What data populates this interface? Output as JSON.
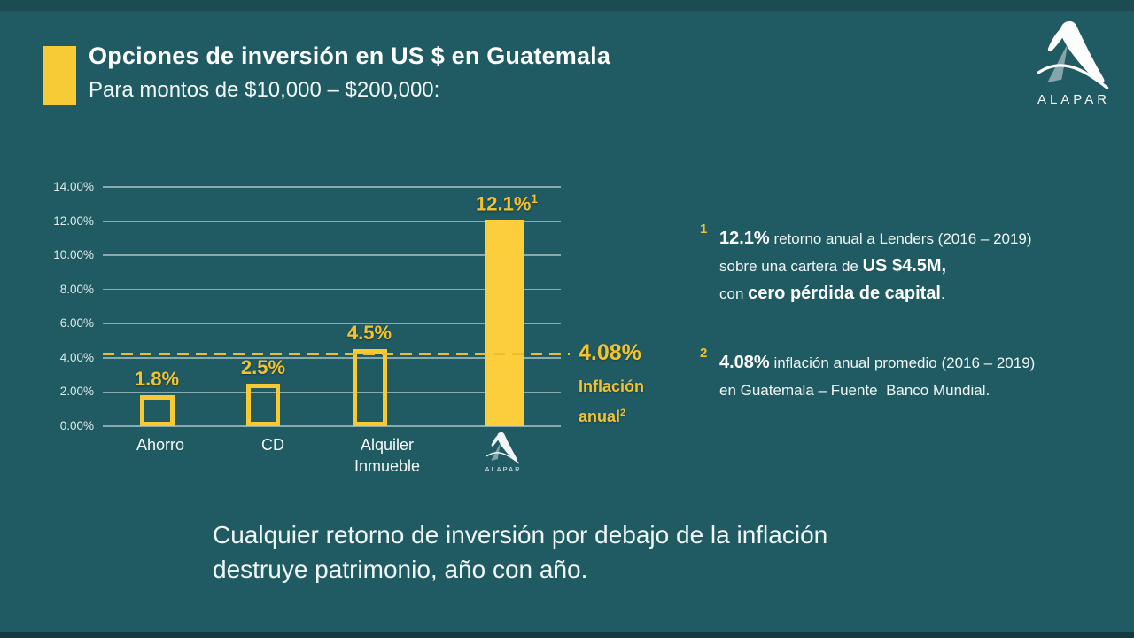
{
  "slide": {
    "title": "Opciones de inversión en US $ en Guatemala",
    "subtitle": "Para montos de $10,000 – $200,000:",
    "brand": "ALAPAR",
    "bottom_message_line1": "Cualquier retorno de inversión por debajo de la inflación",
    "bottom_message_line2": "destruye patrimonio, año con año."
  },
  "chart_data": {
    "type": "bar",
    "title": "",
    "xlabel": "",
    "ylabel": "",
    "categories": [
      "Ahorro",
      "CD",
      "Alquiler Inmueble",
      "ALAPAR"
    ],
    "values": [
      1.8,
      2.5,
      4.5,
      12.1
    ],
    "value_labels": [
      "1.8%",
      "2.5%",
      "4.5%",
      "12.1%"
    ],
    "value_label_sups": [
      "",
      "",
      "",
      "1"
    ],
    "bar_styles": [
      "outline",
      "outline",
      "outline",
      "filled"
    ],
    "ylim": [
      0,
      14
    ],
    "ytick_values": [
      0,
      2,
      4,
      6,
      8,
      10,
      12,
      14
    ],
    "ytick_labels": [
      "0.00%",
      "2.00%",
      "4.00%",
      "6.00%",
      "8.00%",
      "10.00%",
      "12.00%",
      "14.00%"
    ],
    "grid": true,
    "legend": "none",
    "reference_line": {
      "value": 4.08,
      "label": "4.08%",
      "sublabel_1": "Inflación",
      "sublabel_2": "anual",
      "sublabel_sup": "2"
    }
  },
  "footnotes": [
    {
      "marker": "1",
      "lines": [
        [
          {
            "t": "12.1%",
            "b": true
          },
          {
            "t": " retorno anual a Lenders (2016 – 2019)"
          }
        ],
        [
          {
            "t": "sobre una cartera de "
          },
          {
            "t": "US $4.5M,",
            "b": true
          }
        ],
        [
          {
            "t": "con "
          },
          {
            "t": "cero pérdida de capital",
            "b": true
          },
          {
            "t": "."
          }
        ]
      ]
    },
    {
      "marker": "2",
      "lines": [
        [
          {
            "t": "4.08%",
            "b": true
          },
          {
            "t": " inflación anual promedio (2016 – 2019)"
          }
        ],
        [
          {
            "t": "en Guatemala – Fuente  Banco Mundial."
          }
        ]
      ]
    }
  ],
  "colors": {
    "background": "#205A62",
    "accent_yellow": "#F2C230",
    "bar_fill_yellow": "#FCCE3B",
    "bar_outline_yellow": "#F8C933",
    "gridline": "#DEEEF0",
    "text_white": "#FDFDFD"
  }
}
